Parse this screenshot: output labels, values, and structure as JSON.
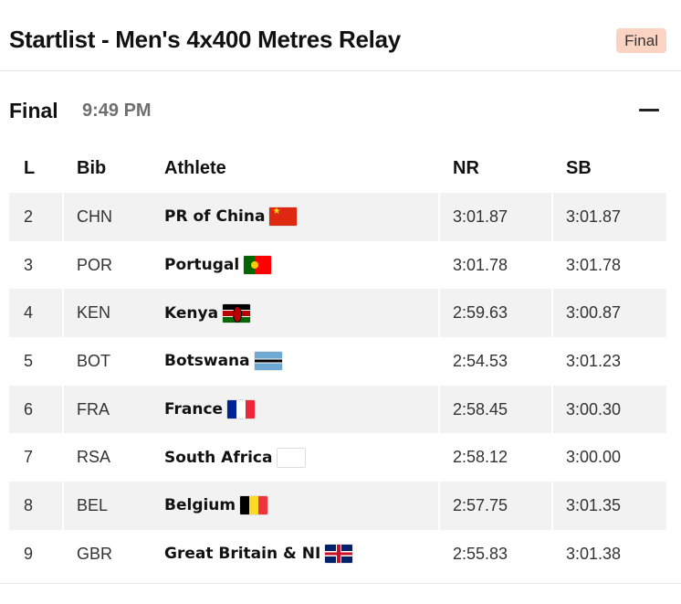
{
  "header": {
    "title": "Startlist - Men's 4x400 Metres Relay",
    "badge": "Final"
  },
  "section": {
    "title": "Final",
    "time": "9:49 PM"
  },
  "table": {
    "columns": {
      "lane": "L",
      "bib": "Bib",
      "athlete": "Athlete",
      "nr": "NR",
      "sb": "SB"
    },
    "rows": [
      {
        "lane": "2",
        "bib": "CHN",
        "athlete": "PR of China",
        "flag": "china-flag-icon",
        "nr": "3:01.87",
        "sb": "3:01.87"
      },
      {
        "lane": "3",
        "bib": "POR",
        "athlete": "Portugal",
        "flag": "portugal-flag-icon",
        "nr": "3:01.78",
        "sb": "3:01.78"
      },
      {
        "lane": "4",
        "bib": "KEN",
        "athlete": "Kenya",
        "flag": "kenya-flag-icon",
        "nr": "2:59.63",
        "sb": "3:00.87"
      },
      {
        "lane": "5",
        "bib": "BOT",
        "athlete": "Botswana",
        "flag": "botswana-flag-icon",
        "nr": "2:54.53",
        "sb": "3:01.23"
      },
      {
        "lane": "6",
        "bib": "FRA",
        "athlete": "France",
        "flag": "france-flag-icon",
        "nr": "2:58.45",
        "sb": "3:00.30"
      },
      {
        "lane": "7",
        "bib": "RSA",
        "athlete": "South Africa",
        "flag": "south-africa-flag-icon",
        "nr": "2:58.12",
        "sb": "3:00.00"
      },
      {
        "lane": "8",
        "bib": "BEL",
        "athlete": "Belgium",
        "flag": "belgium-flag-icon",
        "nr": "2:57.75",
        "sb": "3:01.35"
      },
      {
        "lane": "9",
        "bib": "GBR",
        "athlete": "Great Britain & NI",
        "flag": "great-britain-flag-icon",
        "nr": "2:55.83",
        "sb": "3:01.38"
      }
    ]
  },
  "colors": {
    "badge_bg": "#fbd3c3",
    "row_shade": "#f2f2f2",
    "muted_text": "#6f6f6f"
  },
  "icons": {
    "collapse": "minus-icon"
  }
}
